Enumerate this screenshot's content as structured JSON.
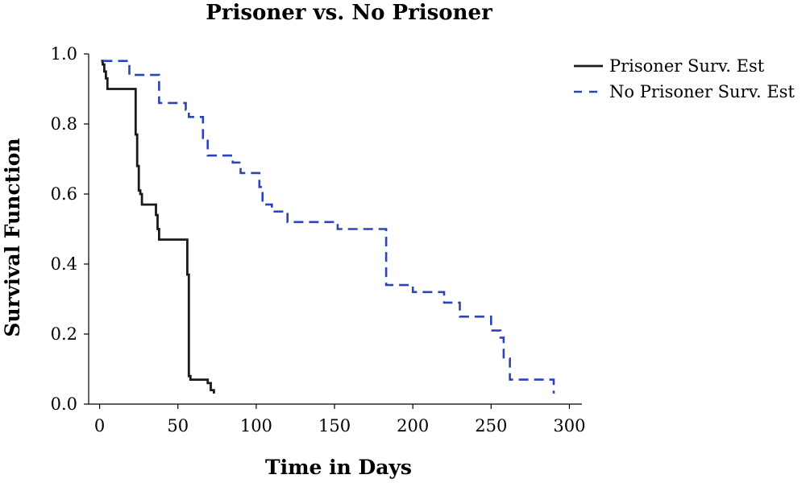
{
  "chart_data": {
    "type": "line",
    "step": true,
    "title": "Prisoner vs. No Prisoner",
    "xlabel": "Time in Days",
    "ylabel": "Survival Function",
    "xlim": [
      -7,
      308
    ],
    "ylim": [
      0,
      1.0
    ],
    "grid": false,
    "legend_position": "top-right",
    "x_ticks": [
      {
        "value": 0,
        "label": "0"
      },
      {
        "value": 50,
        "label": "50"
      },
      {
        "value": 100,
        "label": "100"
      },
      {
        "value": 150,
        "label": "150"
      },
      {
        "value": 200,
        "label": "200"
      },
      {
        "value": 250,
        "label": "250"
      },
      {
        "value": 300,
        "label": "300"
      }
    ],
    "y_ticks": [
      {
        "value": 0.0,
        "label": "0.0"
      },
      {
        "value": 0.2,
        "label": "0.2"
      },
      {
        "value": 0.4,
        "label": "0.4"
      },
      {
        "value": 0.6,
        "label": "0.6"
      },
      {
        "value": 0.8,
        "label": "0.8"
      },
      {
        "value": 1.0,
        "label": "1.0"
      }
    ],
    "series": [
      {
        "name": "Prisoner Surv. Est",
        "color": "#1a1a1a",
        "dash": "solid",
        "x": [
          1,
          2,
          3,
          4,
          5,
          7,
          23,
          24,
          25,
          26,
          27,
          28,
          36,
          37,
          38,
          56,
          57,
          58,
          66,
          69,
          71,
          73
        ],
        "y": [
          0.98,
          0.97,
          0.95,
          0.93,
          0.9,
          0.9,
          0.77,
          0.68,
          0.61,
          0.6,
          0.57,
          0.57,
          0.54,
          0.5,
          0.47,
          0.37,
          0.08,
          0.07,
          0.07,
          0.06,
          0.04,
          0.03
        ]
      },
      {
        "name": "No Prisoner Surv. Est",
        "color": "#2b44b8",
        "dash": "dashed",
        "x": [
          2,
          18,
          19,
          38,
          48,
          55,
          57,
          66,
          69,
          85,
          90,
          102,
          104,
          110,
          120,
          152,
          183,
          185,
          200,
          220,
          230,
          250,
          256,
          258,
          262,
          290
        ],
        "y": [
          0.98,
          0.98,
          0.94,
          0.86,
          0.86,
          0.84,
          0.82,
          0.76,
          0.71,
          0.69,
          0.66,
          0.62,
          0.57,
          0.55,
          0.52,
          0.5,
          0.34,
          0.34,
          0.32,
          0.29,
          0.25,
          0.21,
          0.19,
          0.13,
          0.07,
          0.03
        ]
      }
    ]
  }
}
